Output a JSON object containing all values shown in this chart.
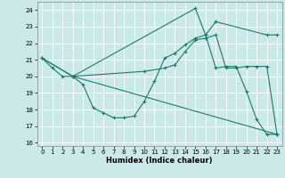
{
  "xlabel": "Humidex (Indice chaleur)",
  "xlim": [
    -0.5,
    23.5
  ],
  "ylim": [
    15.8,
    24.5
  ],
  "yticks": [
    16,
    17,
    18,
    19,
    20,
    21,
    22,
    23,
    24
  ],
  "xticks": [
    0,
    1,
    2,
    3,
    4,
    5,
    6,
    7,
    8,
    9,
    10,
    11,
    12,
    13,
    14,
    15,
    16,
    17,
    18,
    19,
    20,
    21,
    22,
    23
  ],
  "bg_color": "#cce9e9",
  "line_color": "#1a7a6e",
  "grid_color": "#ffffff",
  "line1": {
    "x": [
      0,
      1,
      2,
      3,
      4,
      5,
      6,
      7,
      8,
      9,
      10,
      11,
      12,
      13,
      14,
      15,
      16,
      17,
      18,
      19,
      20,
      21,
      22,
      23
    ],
    "y": [
      21.1,
      20.5,
      20.0,
      20.0,
      19.5,
      18.1,
      17.8,
      17.5,
      17.5,
      17.6,
      18.5,
      19.7,
      21.1,
      21.4,
      21.9,
      22.3,
      22.5,
      20.5,
      20.6,
      20.6,
      19.1,
      17.4,
      16.5,
      16.5
    ]
  },
  "line2": {
    "x": [
      0,
      3,
      10,
      12,
      13,
      14,
      15,
      16,
      17,
      18,
      19,
      20,
      21,
      22,
      23
    ],
    "y": [
      21.1,
      20.0,
      20.3,
      20.5,
      20.7,
      21.5,
      22.2,
      22.3,
      22.5,
      20.5,
      20.5,
      20.6,
      20.6,
      20.6,
      16.5
    ]
  },
  "line3": {
    "x": [
      0,
      3,
      23
    ],
    "y": [
      21.1,
      20.0,
      16.5
    ]
  },
  "line4": {
    "x": [
      3,
      15,
      16,
      17,
      22,
      23
    ],
    "y": [
      20.0,
      24.1,
      22.5,
      23.3,
      22.5,
      22.5
    ]
  }
}
